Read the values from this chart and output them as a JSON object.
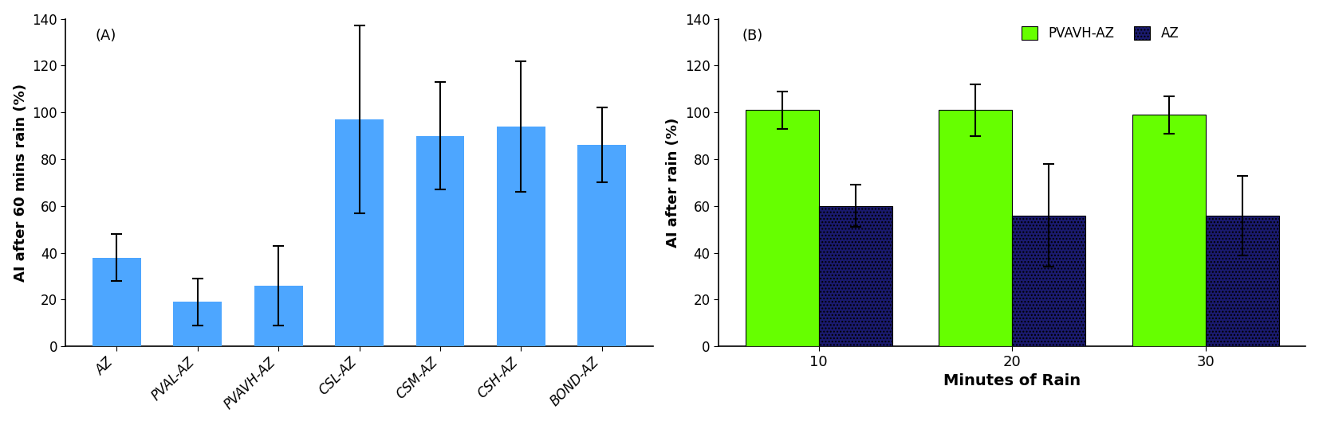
{
  "chart_A": {
    "categories": [
      "AZ",
      "PVAL-AZ",
      "PVAVH-AZ",
      "CSL-AZ",
      "CSM-AZ",
      "CSH-AZ",
      "BOND-AZ"
    ],
    "values": [
      38,
      19,
      26,
      97,
      90,
      94,
      86
    ],
    "errors": [
      10,
      10,
      17,
      40,
      23,
      28,
      16
    ],
    "bar_color": "#4da6ff",
    "ylabel": "AI after 60 mins rain (%)",
    "label": "(A)",
    "ylim": [
      0,
      140
    ],
    "yticks": [
      0,
      20,
      40,
      60,
      80,
      100,
      120,
      140
    ]
  },
  "chart_B": {
    "categories": [
      "10",
      "20",
      "30"
    ],
    "pvavh_values": [
      101,
      101,
      99
    ],
    "pvavh_errors": [
      8,
      11,
      8
    ],
    "az_values": [
      60,
      56,
      56
    ],
    "az_errors": [
      9,
      22,
      17
    ],
    "pvavh_color": "#66FF00",
    "az_color": "#1a1a6e",
    "az_hatch": "....",
    "ylabel": "AI after rain (%)",
    "xlabel": "Minutes of Rain",
    "label": "(B)",
    "ylim": [
      0,
      140
    ],
    "yticks": [
      0,
      20,
      40,
      60,
      80,
      100,
      120,
      140
    ],
    "legend_labels": [
      "PVAVH-AZ",
      "AZ"
    ]
  },
  "figsize": [
    16.54,
    5.34
  ],
  "dpi": 100
}
